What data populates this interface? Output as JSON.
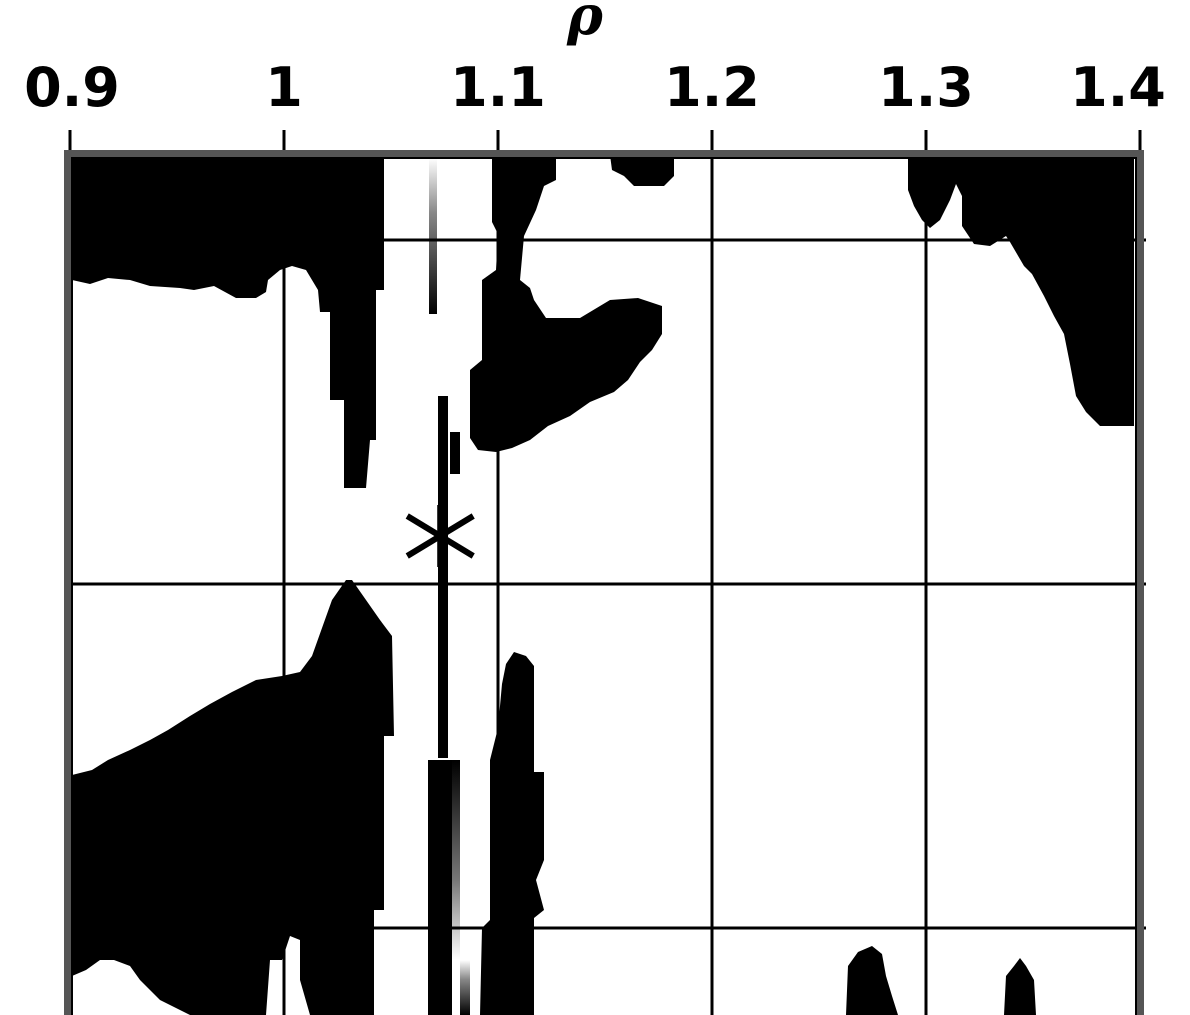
{
  "chart_data": {
    "type": "heatmap",
    "title": "",
    "xlabel": "ρ",
    "ylabel": "",
    "x_ticks": [
      "0.9",
      "1",
      "1.1",
      "1.2",
      "1.3",
      "1.4"
    ],
    "x_tick_values": [
      0.9,
      1.0,
      1.1,
      1.2,
      1.3,
      1.4
    ],
    "xlim": [
      0.9,
      1.4
    ],
    "grid": true,
    "colormap": "binary (black / white)",
    "marker": {
      "symbol": "asterisk",
      "x": 1.073
    },
    "colors": {
      "foreground": "#000000",
      "background": "#ffffff",
      "frame": "#555555"
    }
  }
}
